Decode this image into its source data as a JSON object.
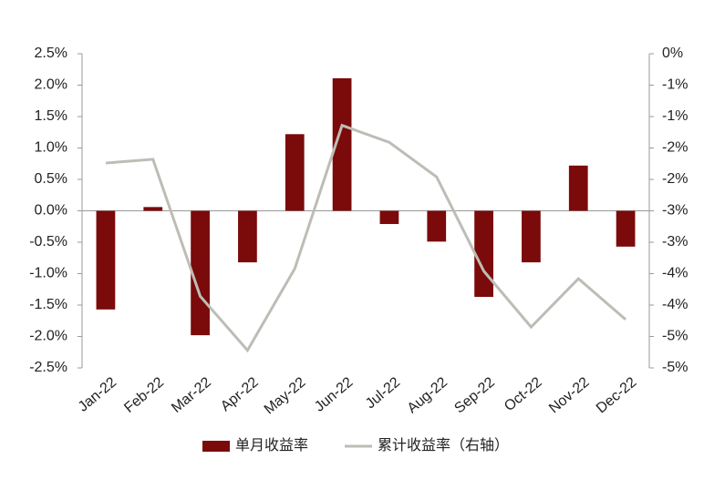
{
  "chart_data": {
    "type": "combo",
    "categories": [
      "Jan-22",
      "Feb-22",
      "Mar-22",
      "Apr-22",
      "May-22",
      "Jun-22",
      "Jul-22",
      "Aug-22",
      "Sep-22",
      "Oct-22",
      "Nov-22",
      "Dec-22"
    ],
    "series": [
      {
        "name": "单月收益率",
        "type": "bar",
        "color": "#7b0a0a",
        "values": [
          -1.57,
          0.06,
          -1.98,
          -0.82,
          1.22,
          2.11,
          -0.21,
          -0.49,
          -1.37,
          -0.82,
          0.72,
          -0.57
        ]
      },
      {
        "name": "累计收益率（右轴）",
        "type": "line",
        "axis": "y2",
        "color": "#bdbdb6",
        "values": [
          -1.74,
          -1.68,
          -3.86,
          -4.72,
          -3.42,
          -1.14,
          -1.41,
          -1.96,
          -3.46,
          -4.35,
          -3.58,
          -4.23
        ]
      }
    ],
    "ylim": [
      -2.5,
      2.5
    ],
    "yticks": [
      {
        "value": 2.5,
        "label": "2.5%"
      },
      {
        "value": 2.0,
        "label": "2.0%"
      },
      {
        "value": 1.5,
        "label": "1.5%"
      },
      {
        "value": 1.0,
        "label": "1.0%"
      },
      {
        "value": 0.5,
        "label": "0.5%"
      },
      {
        "value": 0,
        "label": "0.0%"
      },
      {
        "value": -0.5,
        "label": "-0.5%"
      },
      {
        "value": -1.0,
        "label": "-1.0%"
      },
      {
        "value": -1.5,
        "label": "-1.5%"
      },
      {
        "value": -2.0,
        "label": "-2.0%"
      },
      {
        "value": -2.5,
        "label": "-2.5%"
      }
    ],
    "y2lim": [
      -5,
      0
    ],
    "y2ticks": [
      {
        "value": 0,
        "label": "0%"
      },
      {
        "value": -0.5,
        "label": "-1%"
      },
      {
        "value": -1,
        "label": "-1%"
      },
      {
        "value": -1.5,
        "label": "-2%"
      },
      {
        "value": -2,
        "label": "-2%"
      },
      {
        "value": -2.5,
        "label": "-3%"
      },
      {
        "value": -3,
        "label": "-3%"
      },
      {
        "value": -3.5,
        "label": "-4%"
      },
      {
        "value": -4,
        "label": "-4%"
      },
      {
        "value": -4.5,
        "label": "-5%"
      },
      {
        "value": -5,
        "label": "-5%"
      }
    ],
    "legend": "bottom"
  }
}
